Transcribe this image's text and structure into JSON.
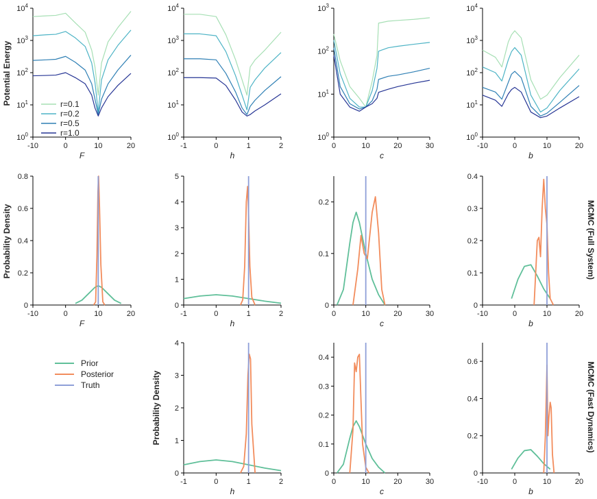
{
  "colors": {
    "r01": "#a6dfb4",
    "r02": "#4cb3c5",
    "r05": "#2e7fb4",
    "r10": "#253494",
    "prior": "#5fbf99",
    "posterior": "#f28c5c",
    "truth": "#8e9fd8"
  },
  "row_labels": {
    "potential_energy": "Potential Energy",
    "density_row2": "Probability Density",
    "density_row3": "Probability Density",
    "mcmc_full": "MCMC (Full System)",
    "mcmc_fast": "MCMC (Fast Dynamics)"
  },
  "legend_energy": [
    {
      "label": "r=0.1",
      "color_key": "r01"
    },
    {
      "label": "r=0.2",
      "color_key": "r02"
    },
    {
      "label": "r=0.5",
      "color_key": "r05"
    },
    {
      "label": "r=1.0",
      "color_key": "r10"
    }
  ],
  "legend_density": [
    {
      "label": "Prior",
      "color_key": "prior"
    },
    {
      "label": "Posterior",
      "color_key": "posterior"
    },
    {
      "label": "Truth",
      "color_key": "truth"
    }
  ],
  "chart_data": [
    {
      "id": "energy-F",
      "type": "line",
      "xlabel": "F",
      "ylabel": "Potential Energy",
      "yscale": "log",
      "xlim": [
        -10,
        20
      ],
      "ylim": [
        1,
        10000
      ],
      "xticks": [
        "-10",
        "0",
        "10",
        "20"
      ],
      "yticks": [
        "10^0",
        "10^1",
        "10^2",
        "10^3",
        "10^4"
      ],
      "series": [
        {
          "name": "r=0.1",
          "color_key": "r01",
          "x": [
            -10,
            -6,
            -3,
            0,
            3,
            6,
            8,
            9,
            10,
            11,
            13,
            16,
            20
          ],
          "y": [
            5500,
            5800,
            6000,
            7000,
            3500,
            1800,
            500,
            150,
            20,
            200,
            900,
            2500,
            8000
          ]
        },
        {
          "name": "r=0.2",
          "color_key": "r02",
          "x": [
            -10,
            -6,
            -3,
            0,
            3,
            6,
            8,
            9,
            10,
            11,
            13,
            16,
            20
          ],
          "y": [
            1400,
            1500,
            1550,
            1900,
            1200,
            650,
            200,
            50,
            6,
            60,
            250,
            700,
            2100
          ]
        },
        {
          "name": "r=0.5",
          "color_key": "r05",
          "x": [
            -10,
            -6,
            -3,
            0,
            3,
            6,
            8,
            9,
            10,
            11,
            13,
            16,
            20
          ],
          "y": [
            240,
            250,
            260,
            320,
            210,
            120,
            45,
            15,
            5,
            15,
            45,
            120,
            350
          ]
        },
        {
          "name": "r=1.0",
          "color_key": "r10",
          "x": [
            -10,
            -6,
            -3,
            0,
            3,
            6,
            8,
            9,
            10,
            11,
            13,
            16,
            20
          ],
          "y": [
            80,
            82,
            84,
            100,
            70,
            45,
            20,
            8,
            4.5,
            8,
            18,
            40,
            95
          ]
        }
      ]
    },
    {
      "id": "energy-h",
      "type": "line",
      "xlabel": "h",
      "ylabel": "",
      "yscale": "log",
      "xlim": [
        -1,
        2
      ],
      "ylim": [
        1,
        10000
      ],
      "xticks": [
        "-1",
        "0",
        "1",
        "2"
      ],
      "yticks": [
        "10^0",
        "10^1",
        "10^2",
        "10^3",
        "10^4"
      ],
      "series": [
        {
          "name": "r=0.1",
          "color_key": "r01",
          "x": [
            -1,
            -0.5,
            0,
            0.3,
            0.6,
            0.8,
            0.95,
            1.05,
            1.2,
            1.5,
            2
          ],
          "y": [
            6500,
            6500,
            5500,
            1500,
            250,
            60,
            20,
            150,
            250,
            500,
            1800
          ]
        },
        {
          "name": "r=0.2",
          "color_key": "r02",
          "x": [
            -1,
            -0.5,
            0,
            0.3,
            0.6,
            0.8,
            0.95,
            1.05,
            1.2,
            1.5,
            2
          ],
          "y": [
            1600,
            1600,
            1400,
            450,
            80,
            20,
            7,
            35,
            60,
            140,
            420
          ]
        },
        {
          "name": "r=0.5",
          "color_key": "r05",
          "x": [
            -1,
            -0.5,
            0,
            0.3,
            0.6,
            0.8,
            0.95,
            1.05,
            1.2,
            1.5,
            2
          ],
          "y": [
            270,
            270,
            250,
            95,
            25,
            8,
            5,
            9,
            14,
            28,
            75
          ]
        },
        {
          "name": "r=1.0",
          "color_key": "r10",
          "x": [
            -1,
            -0.5,
            0,
            0.3,
            0.6,
            0.8,
            0.95,
            1.05,
            1.2,
            1.5,
            2
          ],
          "y": [
            70,
            70,
            68,
            40,
            14,
            6,
            4.5,
            5,
            6.5,
            10,
            22
          ]
        }
      ]
    },
    {
      "id": "energy-c",
      "type": "line",
      "xlabel": "c",
      "ylabel": "",
      "yscale": "log",
      "xlim": [
        0,
        30
      ],
      "ylim": [
        1,
        1000
      ],
      "xticks": [
        "0",
        "10",
        "20",
        "30"
      ],
      "yticks": [
        "10^0",
        "10^1",
        "10^2",
        "10^3"
      ],
      "series": [
        {
          "name": "r=0.1",
          "color_key": "r01",
          "x": [
            0,
            2,
            5,
            8,
            10,
            12,
            13.5,
            14,
            17,
            20,
            25,
            30
          ],
          "y": [
            250,
            60,
            15,
            8,
            5,
            20,
            80,
            450,
            500,
            520,
            550,
            600
          ]
        },
        {
          "name": "r=0.2",
          "color_key": "r02",
          "x": [
            0,
            2,
            5,
            8,
            10,
            12,
            13.5,
            14,
            17,
            20,
            25,
            30
          ],
          "y": [
            180,
            30,
            8,
            5,
            5,
            12,
            40,
            100,
            120,
            130,
            145,
            160
          ]
        },
        {
          "name": "r=0.5",
          "color_key": "r05",
          "x": [
            0,
            2,
            5,
            8,
            10,
            12,
            13.5,
            14,
            17,
            20,
            25,
            30
          ],
          "y": [
            120,
            15,
            6,
            4.5,
            5,
            7,
            13,
            22,
            26,
            28,
            33,
            40
          ]
        },
        {
          "name": "r=1.0",
          "color_key": "r10",
          "x": [
            0,
            2,
            5,
            8,
            10,
            12,
            13.5,
            14,
            17,
            20,
            25,
            30
          ],
          "y": [
            80,
            10,
            5,
            4,
            5,
            6,
            8,
            11,
            13,
            15,
            18,
            21
          ]
        }
      ]
    },
    {
      "id": "energy-b",
      "type": "line",
      "xlabel": "b",
      "ylabel": "",
      "yscale": "log",
      "xlim": [
        -10,
        20
      ],
      "ylim": [
        1,
        10000
      ],
      "xticks": [
        "-10",
        "0",
        "10",
        "20"
      ],
      "yticks": [
        "10^0",
        "10^1",
        "10^2",
        "10^3",
        "10^4"
      ],
      "series": [
        {
          "name": "r=0.1",
          "color_key": "r01",
          "x": [
            -10,
            -6,
            -4,
            -2,
            -1,
            0,
            2,
            5,
            8,
            10,
            14,
            20
          ],
          "y": [
            500,
            300,
            150,
            900,
            1500,
            2000,
            1200,
            60,
            15,
            20,
            70,
            350
          ]
        },
        {
          "name": "r=0.2",
          "color_key": "r02",
          "x": [
            -10,
            -6,
            -4,
            -2,
            -1,
            0,
            2,
            5,
            8,
            10,
            14,
            20
          ],
          "y": [
            150,
            100,
            55,
            250,
            450,
            600,
            350,
            20,
            6,
            8,
            28,
            130
          ]
        },
        {
          "name": "r=0.5",
          "color_key": "r05",
          "x": [
            -10,
            -6,
            -4,
            -2,
            -1,
            0,
            2,
            5,
            8,
            10,
            14,
            20
          ],
          "y": [
            35,
            25,
            15,
            50,
            90,
            110,
            70,
            9,
            4.5,
            5.5,
            12,
            40
          ]
        },
        {
          "name": "r=1.0",
          "color_key": "r10",
          "x": [
            -10,
            -6,
            -4,
            -2,
            -1,
            0,
            2,
            5,
            8,
            10,
            14,
            20
          ],
          "y": [
            20,
            14,
            9,
            22,
            30,
            35,
            25,
            6,
            4,
            4.5,
            8,
            18
          ]
        }
      ]
    },
    {
      "id": "full-F",
      "type": "line",
      "xlabel": "F",
      "ylabel": "Probability Density",
      "xlim": [
        -10,
        20
      ],
      "ylim": [
        0,
        0.8
      ],
      "xticks": [
        "-10",
        "0",
        "10",
        "20"
      ],
      "yticks": [
        "0",
        "0.2",
        "0.4",
        "0.6",
        "0.8"
      ],
      "prior": {
        "x": [
          3,
          5,
          7,
          9,
          10,
          11,
          13,
          15,
          17
        ],
        "y": [
          0.01,
          0.03,
          0.07,
          0.11,
          0.12,
          0.11,
          0.07,
          0.03,
          0.01
        ]
      },
      "posterior": {
        "x": [
          8.6,
          9.2,
          9.6,
          9.9,
          10.1,
          10.4,
          10.8,
          11.4,
          12
        ],
        "y": [
          0,
          0.02,
          0.3,
          0.7,
          0.8,
          0.6,
          0.25,
          0.02,
          0
        ]
      },
      "truth": 10
    },
    {
      "id": "full-h",
      "type": "line",
      "xlabel": "h",
      "ylabel": "",
      "xlim": [
        -1,
        2
      ],
      "ylim": [
        0,
        5
      ],
      "xticks": [
        "-1",
        "0",
        "1",
        "2"
      ],
      "yticks": [
        "0",
        "1",
        "2",
        "3",
        "4",
        "5"
      ],
      "prior": {
        "x": [
          -1,
          -0.5,
          0,
          0.5,
          1,
          1.5,
          2
        ],
        "y": [
          0.25,
          0.35,
          0.4,
          0.35,
          0.25,
          0.15,
          0.07
        ]
      },
      "posterior": {
        "x": [
          0.75,
          0.82,
          0.88,
          0.93,
          0.97,
          1.0,
          1.04,
          1.1,
          1.2
        ],
        "y": [
          0,
          0.2,
          1.5,
          4,
          4.6,
          3.5,
          1.5,
          0.3,
          0
        ]
      },
      "truth": 1
    },
    {
      "id": "full-c",
      "type": "line",
      "xlabel": "c",
      "ylabel": "",
      "xlim": [
        0,
        30
      ],
      "ylim": [
        0,
        0.25
      ],
      "xticks": [
        "0",
        "10",
        "20",
        "30"
      ],
      "yticks": [
        "0",
        "0.1",
        "0.2"
      ],
      "prior": {
        "x": [
          1,
          3,
          5,
          6,
          7,
          8,
          10,
          12,
          14,
          16
        ],
        "y": [
          0,
          0.03,
          0.12,
          0.16,
          0.18,
          0.16,
          0.1,
          0.05,
          0.02,
          0
        ]
      },
      "posterior": {
        "x": [
          6,
          7.5,
          8.5,
          9.5,
          10.5,
          12,
          13,
          14,
          15,
          16
        ],
        "y": [
          0,
          0.07,
          0.135,
          0.1,
          0.09,
          0.18,
          0.21,
          0.14,
          0.03,
          0
        ]
      },
      "truth": 10
    },
    {
      "id": "full-b",
      "type": "line",
      "xlabel": "b",
      "ylabel": "",
      "xlim": [
        -10,
        20
      ],
      "ylim": [
        0,
        0.4
      ],
      "xticks": [
        "-10",
        "0",
        "10",
        "20"
      ],
      "yticks": [
        "0",
        "0.1",
        "0.2",
        "0.3",
        "0.4"
      ],
      "prior": {
        "x": [
          -1,
          1,
          3,
          5,
          7,
          9,
          11
        ],
        "y": [
          0.02,
          0.08,
          0.12,
          0.125,
          0.09,
          0.05,
          0.02
        ]
      },
      "posterior": {
        "x": [
          6,
          7,
          7.5,
          8,
          8.5,
          9,
          9.5,
          10,
          10.5,
          11,
          12
        ],
        "y": [
          0,
          0.2,
          0.21,
          0.15,
          0.3,
          0.39,
          0.3,
          0.25,
          0.1,
          0.02,
          0
        ]
      },
      "truth": 10
    },
    {
      "id": "fast-h",
      "type": "line",
      "xlabel": "h",
      "ylabel": "Probability Density",
      "xlim": [
        -1,
        2
      ],
      "ylim": [
        0,
        4
      ],
      "xticks": [
        "-1",
        "0",
        "1",
        "2"
      ],
      "yticks": [
        "0",
        "1",
        "2",
        "3",
        "4"
      ],
      "prior": {
        "x": [
          -1,
          -0.5,
          0,
          0.5,
          1,
          1.5,
          2
        ],
        "y": [
          0.25,
          0.35,
          0.4,
          0.35,
          0.25,
          0.15,
          0.07
        ]
      },
      "posterior": {
        "x": [
          0.75,
          0.85,
          0.93,
          0.98,
          1.02,
          1.06,
          1.1,
          1.2
        ],
        "y": [
          0,
          0.2,
          1.2,
          3,
          3.65,
          3.5,
          1.5,
          0
        ]
      },
      "truth": 1
    },
    {
      "id": "fast-c",
      "type": "line",
      "xlabel": "c",
      "ylabel": "",
      "xlim": [
        0,
        30
      ],
      "ylim": [
        0,
        0.45
      ],
      "xticks": [
        "0",
        "10",
        "20",
        "30"
      ],
      "yticks": [
        "0",
        "0.1",
        "0.2",
        "0.3",
        "0.4"
      ],
      "prior": {
        "x": [
          1,
          3,
          5,
          6,
          7,
          8,
          10,
          12,
          14,
          16
        ],
        "y": [
          0,
          0.03,
          0.12,
          0.16,
          0.18,
          0.16,
          0.1,
          0.05,
          0.02,
          0
        ]
      },
      "posterior": {
        "x": [
          5,
          6,
          6.5,
          7,
          7.5,
          8,
          8.5,
          9,
          10,
          11
        ],
        "y": [
          0,
          0.15,
          0.38,
          0.35,
          0.4,
          0.41,
          0.25,
          0.1,
          0.02,
          0
        ]
      },
      "truth": 10
    },
    {
      "id": "fast-b",
      "type": "line",
      "xlabel": "b",
      "ylabel": "",
      "xlim": [
        -10,
        20
      ],
      "ylim": [
        0,
        0.7
      ],
      "xticks": [
        "-10",
        "0",
        "10",
        "20"
      ],
      "yticks": [
        "0",
        "0.2",
        "0.4",
        "0.6"
      ],
      "prior": {
        "x": [
          -1,
          1,
          3,
          5,
          7,
          9,
          11
        ],
        "y": [
          0.02,
          0.08,
          0.12,
          0.125,
          0.09,
          0.05,
          0.02
        ]
      },
      "posterior": {
        "x": [
          9,
          9.5,
          10,
          10.3,
          10.6,
          11,
          11.3,
          11.7,
          12.2
        ],
        "y": [
          0,
          0.2,
          0.58,
          0.2,
          0.3,
          0.38,
          0.35,
          0.1,
          0
        ]
      },
      "truth": 10
    }
  ]
}
